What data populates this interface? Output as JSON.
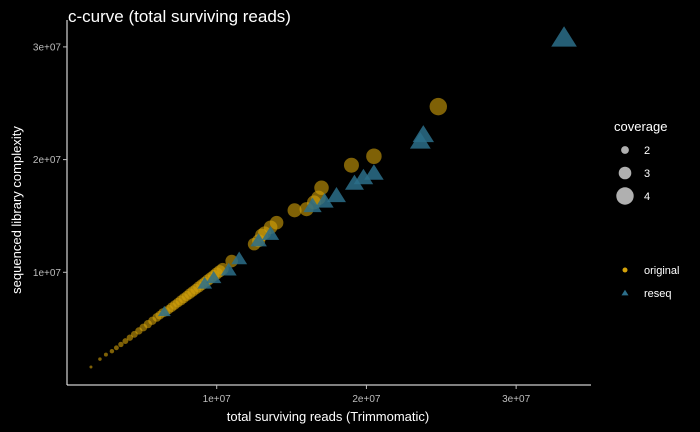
{
  "chart_data": {
    "type": "scatter",
    "title": "c-curve (total surviving reads)",
    "xlabel": "total surviving reads (Trimmomatic)",
    "ylabel": "sequenced library complexity",
    "xlim": [
      0,
      35000000
    ],
    "ylim": [
      0,
      31500000
    ],
    "x_ticks": [
      {
        "value": 10000000,
        "label": "1e+07"
      },
      {
        "value": 20000000,
        "label": "2e+07"
      },
      {
        "value": 30000000,
        "label": "3e+07"
      }
    ],
    "y_ticks": [
      {
        "value": 10000000,
        "label": "1e+07"
      },
      {
        "value": 20000000,
        "label": "2e+07"
      },
      {
        "value": 30000000,
        "label": "3e+07"
      }
    ],
    "grid": false,
    "legend_placement": "right",
    "size_legend": {
      "title": "coverage",
      "entries": [
        {
          "label": "2",
          "value": 2
        },
        {
          "label": "3",
          "value": 3
        },
        {
          "label": "4",
          "value": 4
        }
      ]
    },
    "series": [
      {
        "name": "original",
        "shape": "circle",
        "color": "#D4A20A",
        "points": [
          [
            1600000,
            1600000,
            1.0
          ],
          [
            2200000,
            2300000,
            1.1
          ],
          [
            2600000,
            2700000,
            1.2
          ],
          [
            3000000,
            3000000,
            1.3
          ],
          [
            3300000,
            3300000,
            1.4
          ],
          [
            3600000,
            3600000,
            1.5
          ],
          [
            3900000,
            3900000,
            1.6
          ],
          [
            4200000,
            4200000,
            1.7
          ],
          [
            4500000,
            4500000,
            1.8
          ],
          [
            4800000,
            4800000,
            1.9
          ],
          [
            5100000,
            5100000,
            2.0
          ],
          [
            5400000,
            5400000,
            2.1
          ],
          [
            5700000,
            5700000,
            2.1
          ],
          [
            6000000,
            6000000,
            2.2
          ],
          [
            6200000,
            6200000,
            2.2
          ],
          [
            6400000,
            6400000,
            2.3
          ],
          [
            6600000,
            6500000,
            2.3
          ],
          [
            6800000,
            6700000,
            2.3
          ],
          [
            7000000,
            6900000,
            2.4
          ],
          [
            7200000,
            7100000,
            2.4
          ],
          [
            7400000,
            7300000,
            2.4
          ],
          [
            7600000,
            7500000,
            2.5
          ],
          [
            7800000,
            7700000,
            2.5
          ],
          [
            8000000,
            7900000,
            2.5
          ],
          [
            8200000,
            8100000,
            2.6
          ],
          [
            8400000,
            8300000,
            2.6
          ],
          [
            8600000,
            8500000,
            2.6
          ],
          [
            8800000,
            8700000,
            2.7
          ],
          [
            9000000,
            8900000,
            2.7
          ],
          [
            9200000,
            9100000,
            2.7
          ],
          [
            9400000,
            9300000,
            2.8
          ],
          [
            9600000,
            9500000,
            2.8
          ],
          [
            9800000,
            9700000,
            2.8
          ],
          [
            10000000,
            9900000,
            2.9
          ],
          [
            10200000,
            10100000,
            2.9
          ],
          [
            10400000,
            10300000,
            2.9
          ],
          [
            11000000,
            11000000,
            3.0
          ],
          [
            12500000,
            12500000,
            3.0
          ],
          [
            12800000,
            12800000,
            3.1
          ],
          [
            13000000,
            13300000,
            3.1
          ],
          [
            13200000,
            13500000,
            3.1
          ],
          [
            13600000,
            14000000,
            3.2
          ],
          [
            14000000,
            14400000,
            3.2
          ],
          [
            15200000,
            15500000,
            3.3
          ],
          [
            16000000,
            15600000,
            3.3
          ],
          [
            16500000,
            16200000,
            3.3
          ],
          [
            16800000,
            16600000,
            3.4
          ],
          [
            17000000,
            17500000,
            3.4
          ],
          [
            19000000,
            19500000,
            3.5
          ],
          [
            20500000,
            20300000,
            3.6
          ],
          [
            24800000,
            24700000,
            4.0
          ]
        ]
      },
      {
        "name": "reseq",
        "shape": "triangle",
        "color": "#2C6E8A",
        "points": [
          [
            6500000,
            6500000,
            2.5
          ],
          [
            9200000,
            9000000,
            2.8
          ],
          [
            9800000,
            9500000,
            2.9
          ],
          [
            10800000,
            10200000,
            3.0
          ],
          [
            11500000,
            11200000,
            3.0
          ],
          [
            12800000,
            12800000,
            3.1
          ],
          [
            13600000,
            13400000,
            3.2
          ],
          [
            16400000,
            15900000,
            3.4
          ],
          [
            17200000,
            16300000,
            3.4
          ],
          [
            18000000,
            16800000,
            3.5
          ],
          [
            19200000,
            17900000,
            3.5
          ],
          [
            19800000,
            18400000,
            3.6
          ],
          [
            20500000,
            18800000,
            3.6
          ],
          [
            23600000,
            21600000,
            3.8
          ],
          [
            23800000,
            22200000,
            3.9
          ],
          [
            33200000,
            30800000,
            4.6
          ]
        ]
      }
    ]
  }
}
